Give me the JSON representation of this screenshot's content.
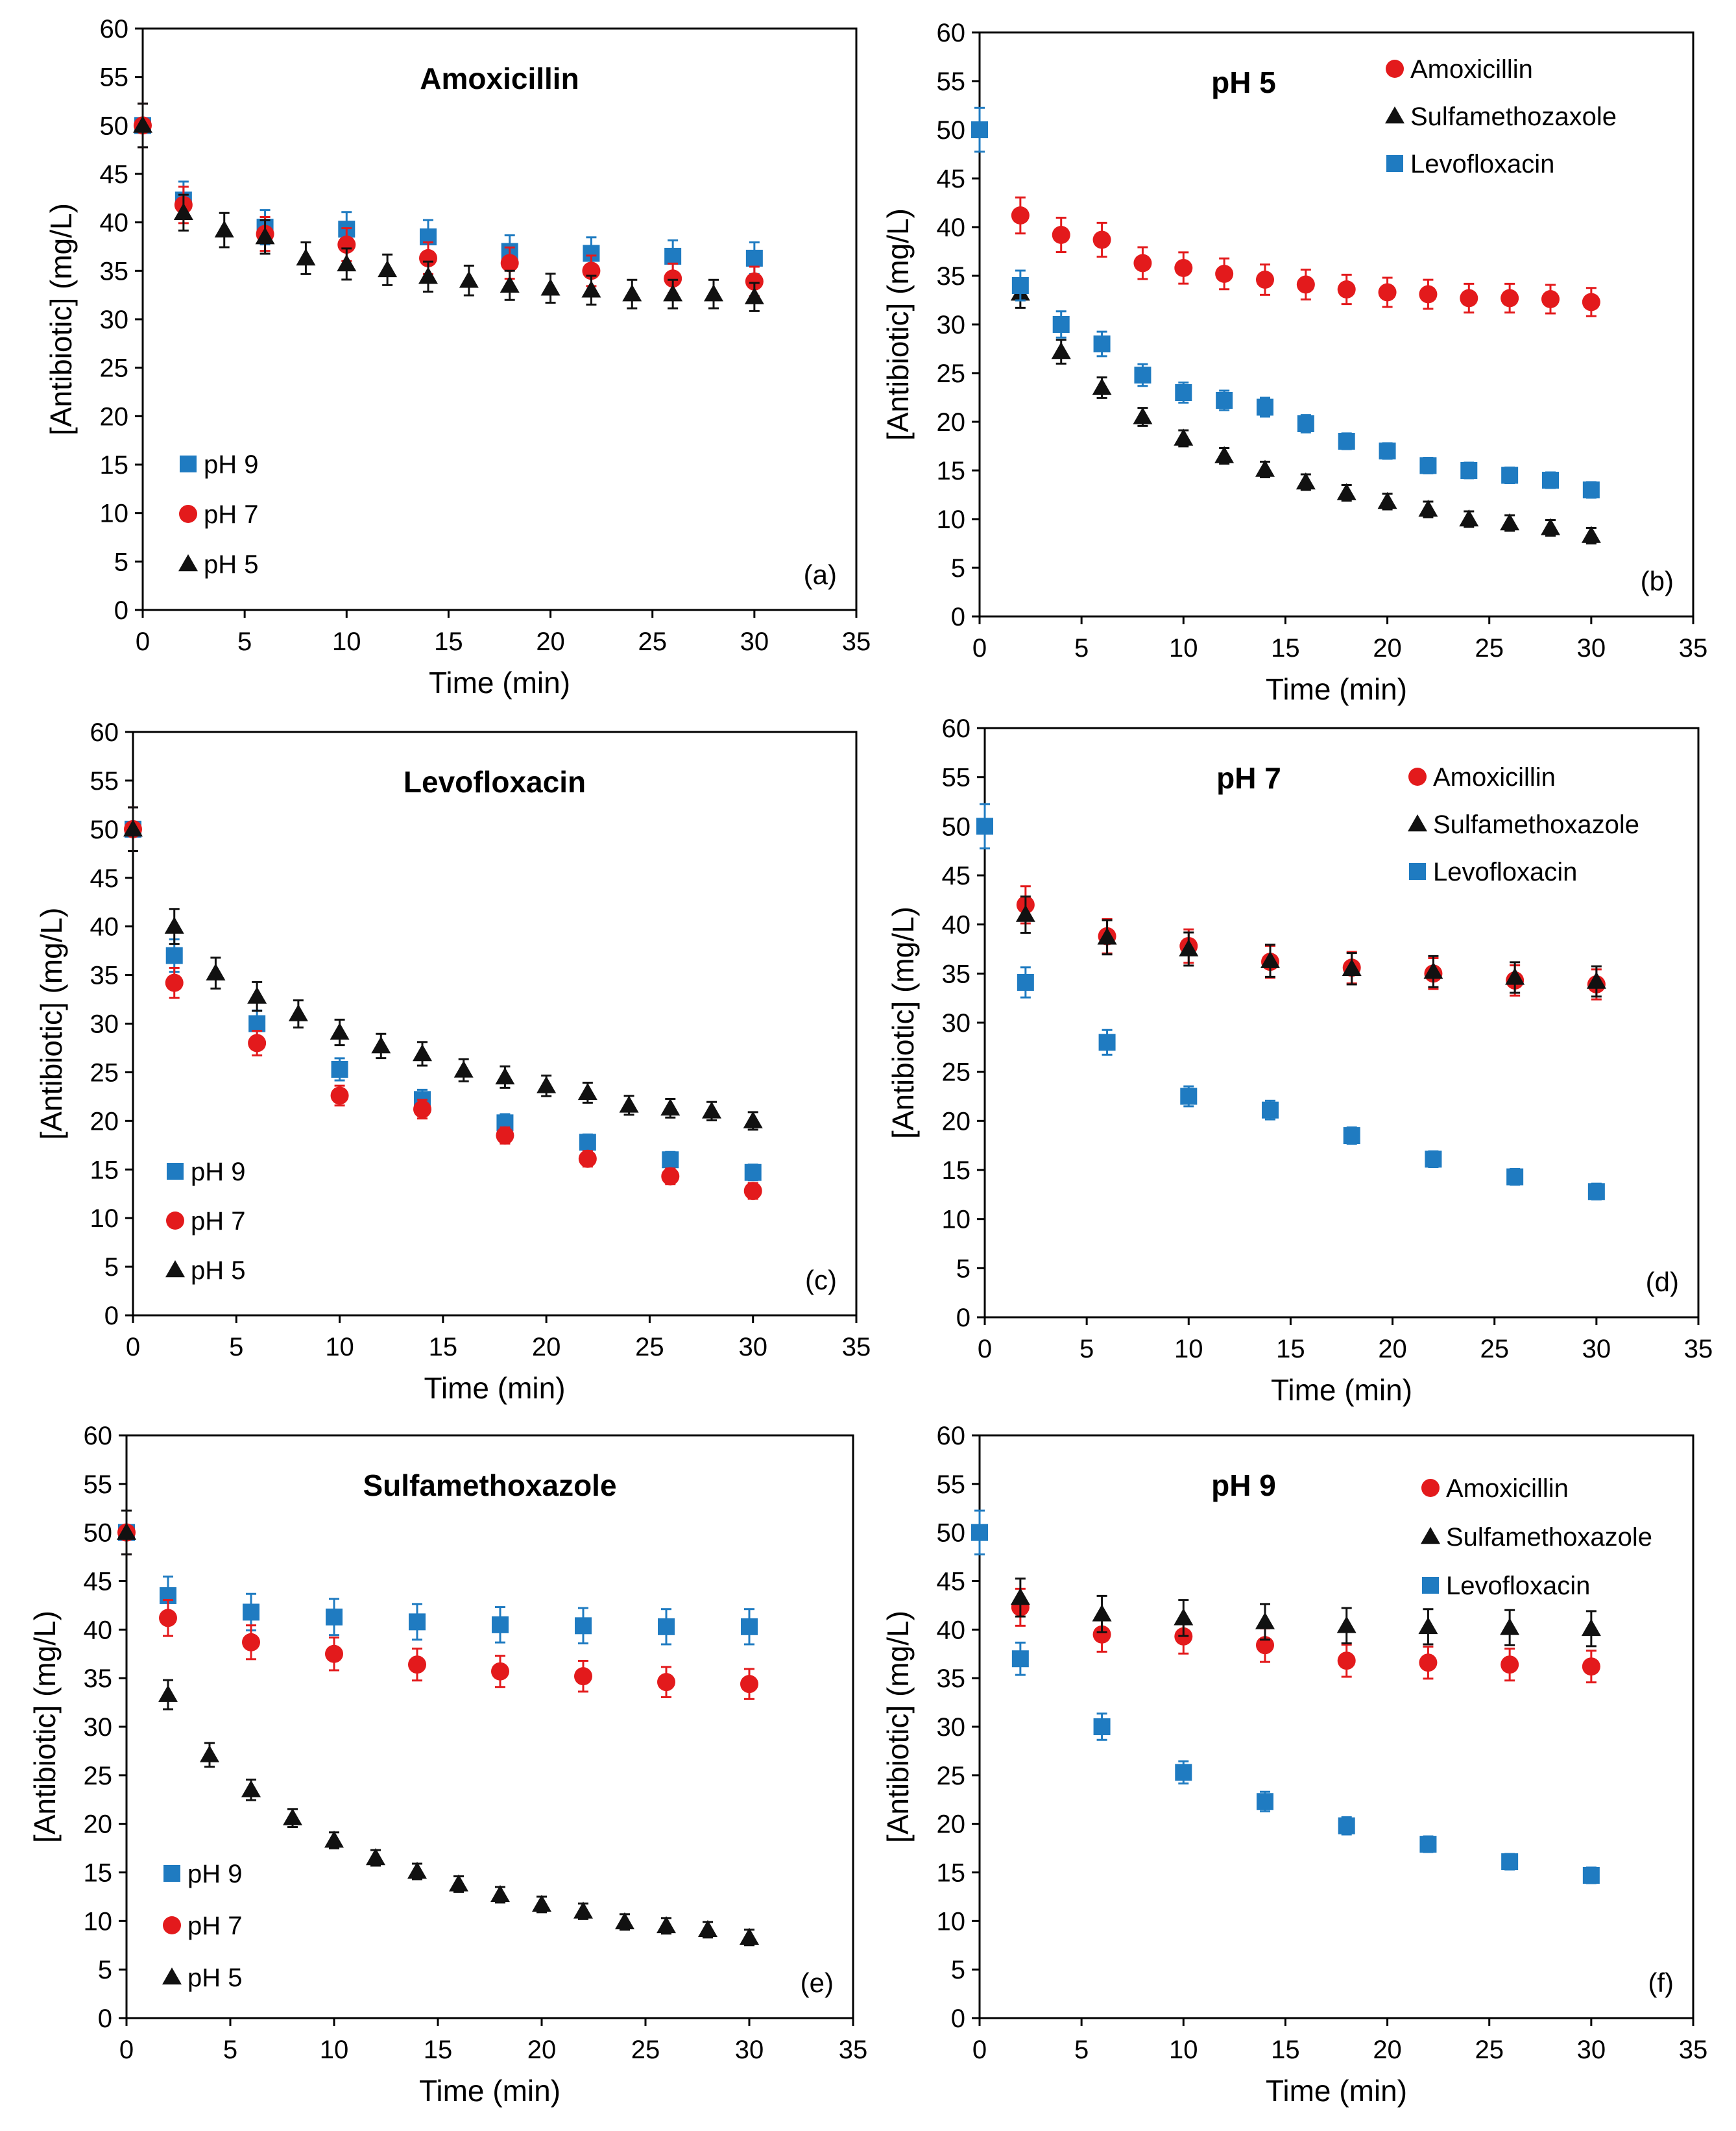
{
  "colors": {
    "series_pH9": "#1f7bc1",
    "series_pH7": "#e31a1c",
    "series_pH5": "#111111",
    "Amoxicillin": "#e31a1c",
    "Sulfamethoxazole": "#111111",
    "Levofloxacin": "#1f7bc1",
    "error_bar": "#e31a1c"
  },
  "chart_data": [
    {
      "panel": "a",
      "type": "scatter",
      "title": "Amoxicillin",
      "panel_tag": "(a)",
      "xlabel": "Time (min)",
      "ylabel": "[Antibiotic] (mg/L)",
      "xlim": [
        0,
        35
      ],
      "ylim": [
        0,
        60
      ],
      "xticks": [
        "0",
        "5",
        "10",
        "15",
        "20",
        "25",
        "30",
        "35"
      ],
      "yticks": [
        "0",
        "5",
        "10",
        "15",
        "20",
        "25",
        "30",
        "35",
        "40",
        "45",
        "50",
        "55",
        "60"
      ],
      "legend_position": "bottom-left",
      "series": [
        {
          "name": "pH 9",
          "marker": "square",
          "color_key": "series_pH9",
          "x": [
            0,
            2,
            6,
            10,
            14,
            18,
            22,
            26,
            30
          ],
          "y": [
            50,
            42.3,
            39.5,
            39.3,
            38.5,
            37,
            36.8,
            36.5,
            36.3
          ]
        },
        {
          "name": "pH 7",
          "marker": "circle",
          "color_key": "series_pH7",
          "x": [
            0,
            2,
            6,
            10,
            14,
            18,
            22,
            26,
            30
          ],
          "y": [
            50,
            41.8,
            38.8,
            37.7,
            36.3,
            35.8,
            35,
            34.2,
            33.9
          ]
        },
        {
          "name": "pH 5",
          "marker": "triangle",
          "color_key": "series_pH5",
          "x": [
            0,
            2,
            4,
            6,
            8,
            10,
            12,
            14,
            16,
            18,
            20,
            22,
            24,
            26,
            28,
            30
          ],
          "y": [
            50,
            41,
            39.2,
            38.5,
            36.3,
            35.7,
            35.1,
            34.4,
            34,
            33.5,
            33.2,
            33,
            32.6,
            32.6,
            32.6,
            32.3
          ]
        }
      ]
    },
    {
      "panel": "b",
      "type": "scatter",
      "title": "pH 5",
      "panel_tag": "(b)",
      "xlabel": "Time (min)",
      "ylabel": "[Antibiotic] (mg/L)",
      "xlim": [
        0,
        35
      ],
      "ylim": [
        0,
        60
      ],
      "xticks": [
        "0",
        "5",
        "10",
        "15",
        "20",
        "25",
        "30",
        "35"
      ],
      "yticks": [
        "0",
        "5",
        "10",
        "15",
        "20",
        "25",
        "30",
        "35",
        "40",
        "45",
        "50",
        "55",
        "60"
      ],
      "legend_position": "top-right",
      "series": [
        {
          "name": "Amoxicillin",
          "marker": "circle",
          "color_key": "Amoxicillin",
          "x": [
            2,
            4,
            6,
            8,
            10,
            12,
            14,
            16,
            18,
            20,
            22,
            24,
            26,
            28,
            30
          ],
          "y": [
            41.2,
            39.2,
            38.7,
            36.3,
            35.8,
            35.2,
            34.6,
            34.1,
            33.6,
            33.3,
            33.1,
            32.7,
            32.7,
            32.6,
            32.3
          ]
        },
        {
          "name": "Sulfamethozaxole",
          "marker": "triangle",
          "color_key": "Sulfamethoxazole",
          "x": [
            2,
            4,
            6,
            8,
            10,
            12,
            14,
            16,
            18,
            20,
            22,
            24,
            26,
            28,
            30
          ],
          "y": [
            33.2,
            27.2,
            23.5,
            20.5,
            18.3,
            16.5,
            15.1,
            13.8,
            12.7,
            11.8,
            11,
            10,
            9.6,
            9.1,
            8.3
          ]
        },
        {
          "name": "Levofloxacin",
          "marker": "square",
          "color_key": "Levofloxacin",
          "x": [
            0,
            2,
            4,
            6,
            8,
            10,
            12,
            14,
            16,
            18,
            20,
            22,
            24,
            26,
            28,
            30
          ],
          "y": [
            50,
            34,
            30,
            28,
            24.8,
            23,
            22.2,
            21.5,
            19.8,
            18,
            17,
            15.5,
            15,
            14.5,
            14,
            13
          ]
        }
      ]
    },
    {
      "panel": "c",
      "type": "scatter",
      "title": "Levofloxacin",
      "panel_tag": "(c)",
      "xlabel": "Time (min)",
      "ylabel": "[Antibiotic] (mg/L)",
      "xlim": [
        0,
        35
      ],
      "ylim": [
        0,
        60
      ],
      "xticks": [
        "0",
        "5",
        "10",
        "15",
        "20",
        "25",
        "30",
        "35"
      ],
      "yticks": [
        "0",
        "5",
        "10",
        "15",
        "20",
        "25",
        "30",
        "35",
        "40",
        "45",
        "50",
        "55",
        "60"
      ],
      "legend_position": "bottom-left",
      "series": [
        {
          "name": "pH 9",
          "marker": "square",
          "color_key": "series_pH9",
          "x": [
            0,
            2,
            6,
            10,
            14,
            18,
            22,
            26,
            30
          ],
          "y": [
            50,
            37,
            30,
            25.3,
            22.2,
            19.8,
            17.8,
            16,
            14.7
          ]
        },
        {
          "name": "pH 7",
          "marker": "circle",
          "color_key": "series_pH7",
          "x": [
            0,
            2,
            6,
            10,
            14,
            18,
            22,
            26,
            30
          ],
          "y": [
            50,
            34.2,
            28,
            22.6,
            21.2,
            18.5,
            16.1,
            14.3,
            12.8
          ]
        },
        {
          "name": "pH 5",
          "marker": "triangle",
          "color_key": "series_pH5",
          "x": [
            0,
            2,
            4,
            6,
            8,
            10,
            12,
            14,
            16,
            18,
            20,
            22,
            24,
            26,
            28,
            30
          ],
          "y": [
            50,
            40,
            35.2,
            32.8,
            31,
            29.1,
            27.7,
            26.9,
            25.2,
            24.5,
            23.6,
            22.9,
            21.6,
            21.3,
            21,
            20
          ]
        }
      ]
    },
    {
      "panel": "d",
      "type": "scatter",
      "title": "pH 7",
      "panel_tag": "(d)",
      "xlabel": "Time (min)",
      "ylabel": "[Antibiotic] (mg/L)",
      "xlim": [
        0,
        35
      ],
      "ylim": [
        0,
        60
      ],
      "xticks": [
        "0",
        "5",
        "10",
        "15",
        "20",
        "25",
        "30",
        "35"
      ],
      "yticks": [
        "0",
        "5",
        "10",
        "15",
        "20",
        "25",
        "30",
        "35",
        "40",
        "45",
        "50",
        "55",
        "60"
      ],
      "legend_position": "top-right",
      "series": [
        {
          "name": "Amoxicillin",
          "marker": "circle",
          "color_key": "Amoxicillin",
          "x": [
            2,
            6,
            10,
            14,
            18,
            22,
            26,
            30
          ],
          "y": [
            42,
            38.8,
            37.8,
            36.2,
            35.6,
            35,
            34.3,
            33.9
          ]
        },
        {
          "name": "Sulfamethoxazole",
          "marker": "triangle",
          "color_key": "Sulfamethoxazole",
          "x": [
            2,
            6,
            10,
            14,
            18,
            22,
            26,
            30
          ],
          "y": [
            41,
            38.7,
            37.5,
            36.3,
            35.5,
            35.2,
            34.6,
            34.2
          ]
        },
        {
          "name": "Levofloxacin",
          "marker": "square",
          "color_key": "Levofloxacin",
          "x": [
            0,
            2,
            6,
            10,
            14,
            18,
            22,
            26,
            30
          ],
          "y": [
            50,
            34.1,
            28,
            22.5,
            21.1,
            18.5,
            16.1,
            14.3,
            12.8
          ]
        }
      ]
    },
    {
      "panel": "e",
      "type": "scatter",
      "title": "Sulfamethoxazole",
      "panel_tag": "(e)",
      "xlabel": "Time (min)",
      "ylabel": "[Antibiotic] (mg/L)",
      "xlim": [
        0,
        35
      ],
      "ylim": [
        0,
        60
      ],
      "xticks": [
        "0",
        "5",
        "10",
        "15",
        "20",
        "25",
        "30",
        "35"
      ],
      "yticks": [
        "0",
        "5",
        "10",
        "15",
        "20",
        "25",
        "30",
        "35",
        "40",
        "45",
        "50",
        "55",
        "60"
      ],
      "legend_position": "bottom-left",
      "series": [
        {
          "name": "pH 9",
          "marker": "square",
          "color_key": "series_pH9",
          "x": [
            0,
            2,
            6,
            10,
            14,
            18,
            22,
            26,
            30
          ],
          "y": [
            50,
            43.5,
            41.8,
            41.3,
            40.8,
            40.5,
            40.4,
            40.3,
            40.3
          ]
        },
        {
          "name": "pH 7",
          "marker": "circle",
          "color_key": "series_pH7",
          "x": [
            0,
            2,
            6,
            10,
            14,
            18,
            22,
            26,
            30
          ],
          "y": [
            50,
            41.2,
            38.7,
            37.5,
            36.4,
            35.7,
            35.2,
            34.6,
            34.4
          ]
        },
        {
          "name": "pH 5",
          "marker": "triangle",
          "color_key": "series_pH5",
          "x": [
            0,
            2,
            4,
            6,
            8,
            10,
            12,
            14,
            16,
            18,
            20,
            22,
            24,
            26,
            28,
            30
          ],
          "y": [
            50,
            33.3,
            27.1,
            23.5,
            20.6,
            18.3,
            16.5,
            15.1,
            13.8,
            12.7,
            11.7,
            11,
            9.9,
            9.5,
            9.1,
            8.3
          ]
        }
      ]
    },
    {
      "panel": "f",
      "type": "scatter",
      "title": "pH 9",
      "panel_tag": "(f)",
      "xlabel": "Time (min)",
      "ylabel": "[Antibiotic] (mg/L)",
      "xlim": [
        0,
        35
      ],
      "ylim": [
        0,
        60
      ],
      "xticks": [
        "0",
        "5",
        "10",
        "15",
        "20",
        "25",
        "30",
        "35"
      ],
      "yticks": [
        "0",
        "5",
        "10",
        "15",
        "20",
        "25",
        "30",
        "35",
        "40",
        "45",
        "50",
        "55",
        "60"
      ],
      "legend_position": "top-right",
      "series": [
        {
          "name": "Amoxicillin",
          "marker": "circle",
          "color_key": "Amoxicillin",
          "x": [
            2,
            6,
            10,
            14,
            18,
            22,
            26,
            30
          ],
          "y": [
            42.3,
            39.5,
            39.3,
            38.4,
            36.8,
            36.6,
            36.4,
            36.2
          ]
        },
        {
          "name": "Sulfamethoxazole",
          "marker": "triangle",
          "color_key": "Sulfamethoxazole",
          "x": [
            2,
            6,
            10,
            14,
            18,
            22,
            26,
            30
          ],
          "y": [
            43.3,
            41.6,
            41.2,
            40.8,
            40.4,
            40.3,
            40.2,
            40.1
          ]
        },
        {
          "name": "Levofloxacin",
          "marker": "square",
          "color_key": "Levofloxacin",
          "x": [
            0,
            2,
            6,
            10,
            14,
            18,
            22,
            26,
            30
          ],
          "y": [
            50,
            37,
            30,
            25.3,
            22.3,
            19.8,
            17.9,
            16.1,
            14.7
          ]
        }
      ]
    }
  ]
}
